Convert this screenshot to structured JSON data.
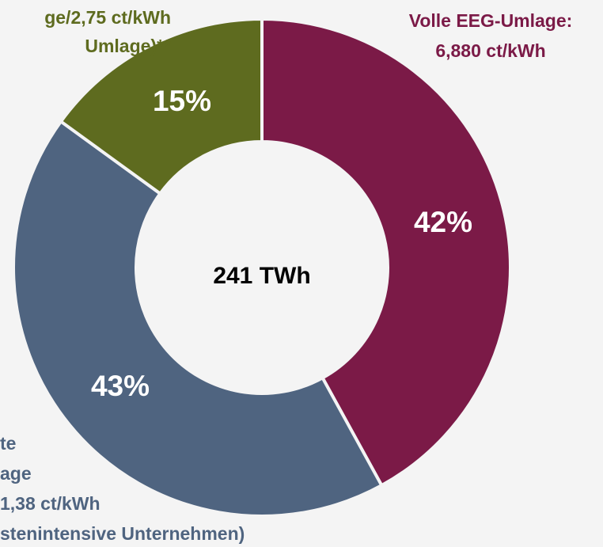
{
  "chart_data": {
    "type": "pie",
    "center_label": "241 TWh",
    "categories": [
      [
        "Volle EEG-Umlage:",
        "6,880 ct/kWh"
      ],
      [
        "te",
        "age",
        "1,38 ct/kWh",
        "stenintensive Unternehmen)"
      ],
      [
        "ge/2,75 ct/kWh",
        "Umlage)**"
      ]
    ],
    "values": [
      42,
      43,
      15
    ],
    "value_labels": [
      "42%",
      "43%",
      "15%"
    ],
    "colors": [
      "#7b1a47",
      "#4f6480",
      "#5e6b1f"
    ]
  }
}
